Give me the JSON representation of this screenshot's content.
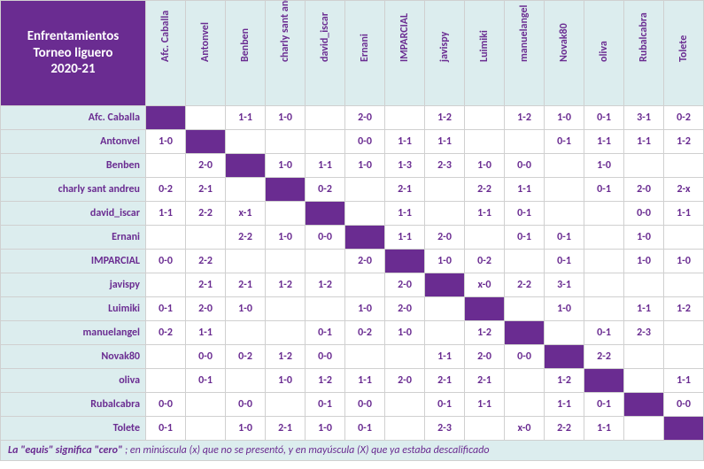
{
  "title_line1": "Enfrentamientos",
  "title_line2": "Torneo liguero",
  "title_line3": "2020-21",
  "footer_bold": "La \"equis\" significa \"cero\"",
  "footer_rest": " ; en minúscula (x) que no se presentó, y en mayúscula (X) que ya estaba descalificado",
  "colors": {
    "accent": "#6a2c91",
    "header_bg": "#dcedee",
    "cell_bg": "#ffffff",
    "border": "#d0d0d0"
  },
  "fonts": {
    "title_size": 15,
    "label_size": 12,
    "cell_size": 12
  },
  "players": [
    "Afc. Caballa",
    "Antonvel",
    "Benben",
    "charly sant andreu",
    "david_iscar",
    "Ernani",
    "IMPARCIAL",
    "javispy",
    "Luimiki",
    "manuelangel",
    "Novak80",
    "oliva",
    "Rubalcabra",
    "Tolete"
  ],
  "grid": [
    [
      null,
      "",
      "1-1",
      "1-0",
      "",
      "2-0",
      "",
      "1-2",
      "",
      "1-2",
      "1-0",
      "0-1",
      "3-1",
      "0-2"
    ],
    [
      "1-0",
      null,
      "",
      "",
      "",
      "0-0",
      "1-1",
      "1-1",
      "",
      "",
      "0-1",
      "1-1",
      "1-1",
      "1-2"
    ],
    [
      "",
      "2-0",
      null,
      "1-0",
      "1-1",
      "1-0",
      "1-3",
      "2-3",
      "1-0",
      "0-0",
      "",
      "1-0",
      "",
      ""
    ],
    [
      "0-2",
      "2-1",
      "",
      null,
      "0-2",
      "",
      "2-1",
      "",
      "2-2",
      "1-1",
      "",
      "0-1",
      "2-0",
      "2-x"
    ],
    [
      "1-1",
      "2-2",
      "x-1",
      "",
      null,
      "",
      "1-1",
      "",
      "1-1",
      "0-1",
      "",
      "",
      "0-0",
      "1-1"
    ],
    [
      "",
      "",
      "2-2",
      "1-0",
      "0-0",
      null,
      "1-1",
      "2-0",
      "",
      "0-1",
      "0-1",
      "",
      "1-0",
      ""
    ],
    [
      "0-0",
      "2-2",
      "",
      "",
      "",
      "2-0",
      null,
      "1-0",
      "0-2",
      "",
      "0-1",
      "",
      "1-0",
      "1-0"
    ],
    [
      "",
      "2-1",
      "2-1",
      "1-2",
      "1-2",
      "",
      "2-0",
      null,
      "x-0",
      "2-2",
      "3-1",
      "",
      "",
      ""
    ],
    [
      "0-1",
      "2-0",
      "1-0",
      "",
      "",
      "1-0",
      "2-0",
      "",
      null,
      "",
      "1-0",
      "",
      "1-1",
      "1-2"
    ],
    [
      "0-2",
      "1-1",
      "",
      "",
      "0-1",
      "0-2",
      "1-0",
      "",
      "1-2",
      null,
      "",
      "0-1",
      "2-3",
      ""
    ],
    [
      "",
      "0-0",
      "0-2",
      "1-2",
      "0-0",
      "",
      "",
      "1-1",
      "2-0",
      "0-0",
      null,
      "2-2",
      "",
      ""
    ],
    [
      "",
      "0-1",
      "",
      "1-0",
      "1-2",
      "1-1",
      "2-0",
      "2-1",
      "2-1",
      "",
      "1-2",
      null,
      "",
      "1-1"
    ],
    [
      "0-0",
      "",
      "0-0",
      "",
      "0-1",
      "0-0",
      "",
      "0-1",
      "1-1",
      "",
      "1-1",
      "0-1",
      null,
      "0-0"
    ],
    [
      "0-1",
      "",
      "1-0",
      "2-1",
      "1-0",
      "0-1",
      "",
      "2-3",
      "",
      "x-0",
      "2-2",
      "1-1",
      "",
      null
    ]
  ]
}
